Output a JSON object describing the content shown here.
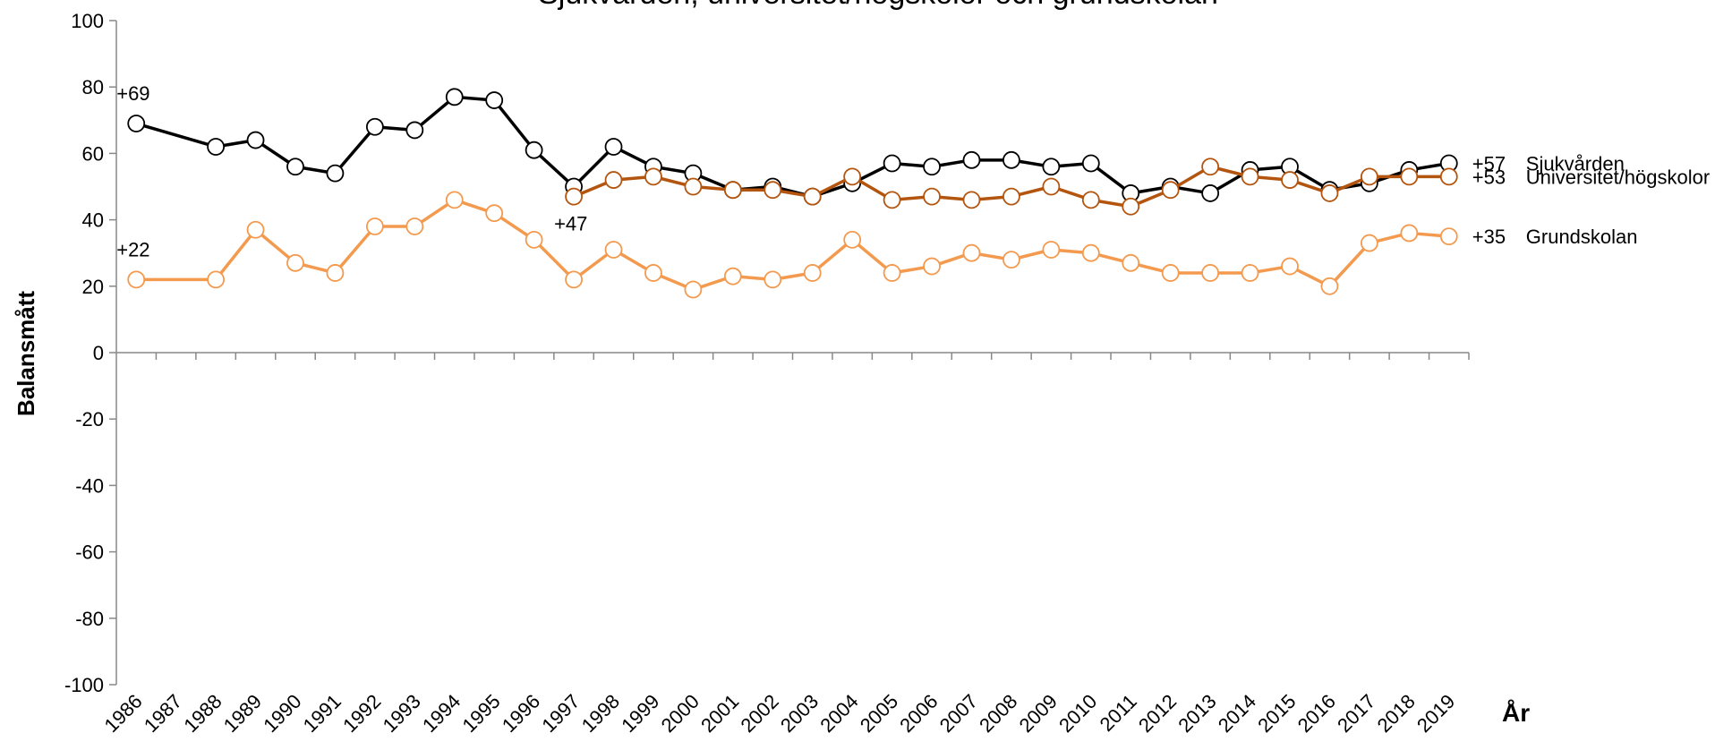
{
  "chart_data": {
    "type": "line",
    "title": "Sjukvården, universitet/högskolor och grundskolan",
    "ylabel": "Balansmått",
    "xlabel": "År",
    "x": [
      1986,
      1988,
      1989,
      1990,
      1991,
      1992,
      1993,
      1994,
      1995,
      1996,
      1997,
      1998,
      1999,
      2000,
      2001,
      2002,
      2003,
      2004,
      2005,
      2006,
      2007,
      2008,
      2009,
      2010,
      2011,
      2012,
      2013,
      2014,
      2015,
      2016,
      2017,
      2018,
      2019
    ],
    "xlim": [
      1985.5,
      2019.5
    ],
    "xticks": [
      1986,
      1987,
      1988,
      1989,
      1990,
      1991,
      1992,
      1993,
      1994,
      1995,
      1996,
      1997,
      1998,
      1999,
      2000,
      2001,
      2002,
      2003,
      2004,
      2005,
      2006,
      2007,
      2008,
      2009,
      2010,
      2011,
      2012,
      2013,
      2014,
      2015,
      2016,
      2017,
      2018,
      2019
    ],
    "ylim": [
      -100,
      100
    ],
    "yticks": [
      -100,
      -80,
      -60,
      -40,
      -20,
      0,
      20,
      40,
      60,
      80,
      100
    ],
    "series": [
      {
        "name": "Sjukvården",
        "color": "#000000",
        "values": [
          69,
          62,
          64,
          56,
          54,
          68,
          67,
          77,
          76,
          61,
          50,
          62,
          56,
          54,
          49,
          50,
          47,
          51,
          57,
          56,
          58,
          58,
          56,
          57,
          48,
          50,
          48,
          55,
          56,
          49,
          51,
          55,
          57
        ],
        "value_labels": [
          "+69",
          null,
          null,
          null,
          null,
          null,
          null,
          null,
          null,
          null,
          null,
          null,
          null,
          null,
          null,
          null,
          null,
          null,
          null,
          null,
          null,
          null,
          null,
          null,
          null,
          null,
          null,
          null,
          null,
          null,
          null,
          null,
          "+57"
        ]
      },
      {
        "name": "Universitet/högskolor",
        "color": "#b3550f",
        "values": [
          null,
          null,
          null,
          null,
          null,
          null,
          null,
          null,
          null,
          null,
          47,
          52,
          53,
          50,
          49,
          49,
          47,
          53,
          46,
          47,
          46,
          47,
          50,
          46,
          44,
          49,
          56,
          53,
          52,
          48,
          53,
          53,
          53
        ],
        "value_labels": [
          null,
          null,
          null,
          null,
          null,
          null,
          null,
          null,
          null,
          null,
          "+47",
          null,
          null,
          null,
          null,
          null,
          null,
          null,
          null,
          null,
          null,
          null,
          null,
          null,
          null,
          null,
          null,
          null,
          null,
          null,
          null,
          null,
          "+53"
        ]
      },
      {
        "name": "Grundskolan",
        "color": "#f39a4f",
        "values": [
          22,
          22,
          37,
          27,
          24,
          38,
          38,
          46,
          42,
          34,
          22,
          31,
          24,
          19,
          23,
          22,
          24,
          34,
          24,
          26,
          30,
          28,
          31,
          30,
          27,
          24,
          24,
          24,
          26,
          20,
          33,
          36,
          35
        ],
        "value_labels": [
          "+22",
          null,
          null,
          null,
          null,
          null,
          null,
          null,
          null,
          null,
          null,
          null,
          null,
          null,
          null,
          null,
          null,
          null,
          null,
          null,
          null,
          null,
          null,
          null,
          null,
          null,
          null,
          null,
          null,
          null,
          null,
          null,
          "+35"
        ]
      }
    ]
  }
}
